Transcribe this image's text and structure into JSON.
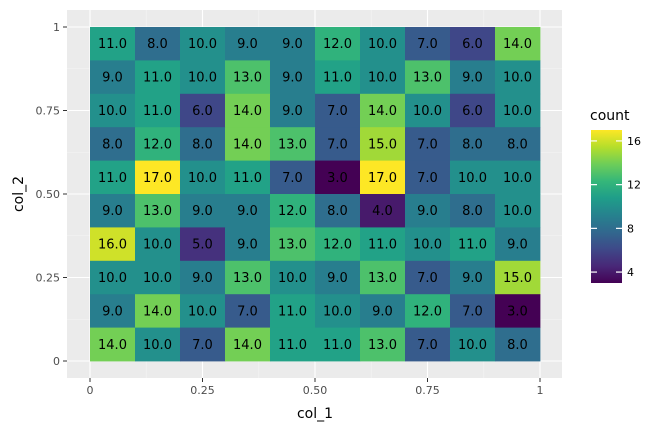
{
  "chart_data": {
    "type": "heatmap",
    "title": "",
    "xlabel": "col_1",
    "ylabel": "col_2",
    "xlim": [
      0,
      1
    ],
    "ylim": [
      0,
      1
    ],
    "x_ticks": [
      {
        "value": 0,
        "label": "0"
      },
      {
        "value": 0.25,
        "label": "0.25"
      },
      {
        "value": 0.5,
        "label": "0.50"
      },
      {
        "value": 0.75,
        "label": "0.75"
      },
      {
        "value": 1,
        "label": "1"
      }
    ],
    "y_ticks": [
      {
        "value": 0,
        "label": "0"
      },
      {
        "value": 0.25,
        "label": "0.25"
      },
      {
        "value": 0.5,
        "label": "0.50"
      },
      {
        "value": 0.75,
        "label": "0.75"
      },
      {
        "value": 1,
        "label": "1"
      }
    ],
    "bins_x": 10,
    "bins_y": 10,
    "rows_top_to_bottom": [
      [
        "11.0",
        "8.0",
        "10.0",
        "9.0",
        "9.0",
        "12.0",
        "10.0",
        "7.0",
        "6.0",
        "14.0"
      ],
      [
        "9.0",
        "11.0",
        "10.0",
        "13.0",
        "9.0",
        "11.0",
        "10.0",
        "13.0",
        "9.0",
        "10.0"
      ],
      [
        "10.0",
        "11.0",
        "6.0",
        "14.0",
        "9.0",
        "7.0",
        "14.0",
        "10.0",
        "6.0",
        "10.0"
      ],
      [
        "8.0",
        "12.0",
        "8.0",
        "14.0",
        "13.0",
        "7.0",
        "15.0",
        "7.0",
        "8.0",
        "8.0"
      ],
      [
        "11.0",
        "17.0",
        "10.0",
        "11.0",
        "7.0",
        "3.0",
        "17.0",
        "7.0",
        "10.0",
        "10.0"
      ],
      [
        "9.0",
        "13.0",
        "9.0",
        "9.0",
        "12.0",
        "8.0",
        "4.0",
        "9.0",
        "8.0",
        "10.0"
      ],
      [
        "16.0",
        "10.0",
        "5.0",
        "9.0",
        "13.0",
        "12.0",
        "11.0",
        "10.0",
        "11.0",
        "9.0"
      ],
      [
        "10.0",
        "10.0",
        "9.0",
        "13.0",
        "10.0",
        "9.0",
        "13.0",
        "7.0",
        "9.0",
        "15.0"
      ],
      [
        "9.0",
        "14.0",
        "10.0",
        "7.0",
        "11.0",
        "10.0",
        "9.0",
        "12.0",
        "7.0",
        "3.0"
      ],
      [
        "14.0",
        "10.0",
        "7.0",
        "14.0",
        "11.0",
        "11.0",
        "13.0",
        "7.0",
        "10.0",
        "8.0"
      ]
    ],
    "legend": {
      "title": "count",
      "placement": "right",
      "range": [
        3,
        17
      ],
      "ticks": [
        {
          "value": 4,
          "label": "4"
        },
        {
          "value": 8,
          "label": "8"
        },
        {
          "value": 12,
          "label": "12"
        },
        {
          "value": 16,
          "label": "16"
        }
      ]
    },
    "colormap": "viridis",
    "grid": true,
    "colors": {
      "panel_background": "#ebebeb",
      "grid_major": "#ffffff",
      "grid_minor": "#f4f4f4",
      "viridis": [
        "#440154",
        "#482878",
        "#3e4989",
        "#31688e",
        "#26828e",
        "#1f9e89",
        "#35b779",
        "#6ece58",
        "#b5de2b",
        "#fde725"
      ]
    }
  }
}
